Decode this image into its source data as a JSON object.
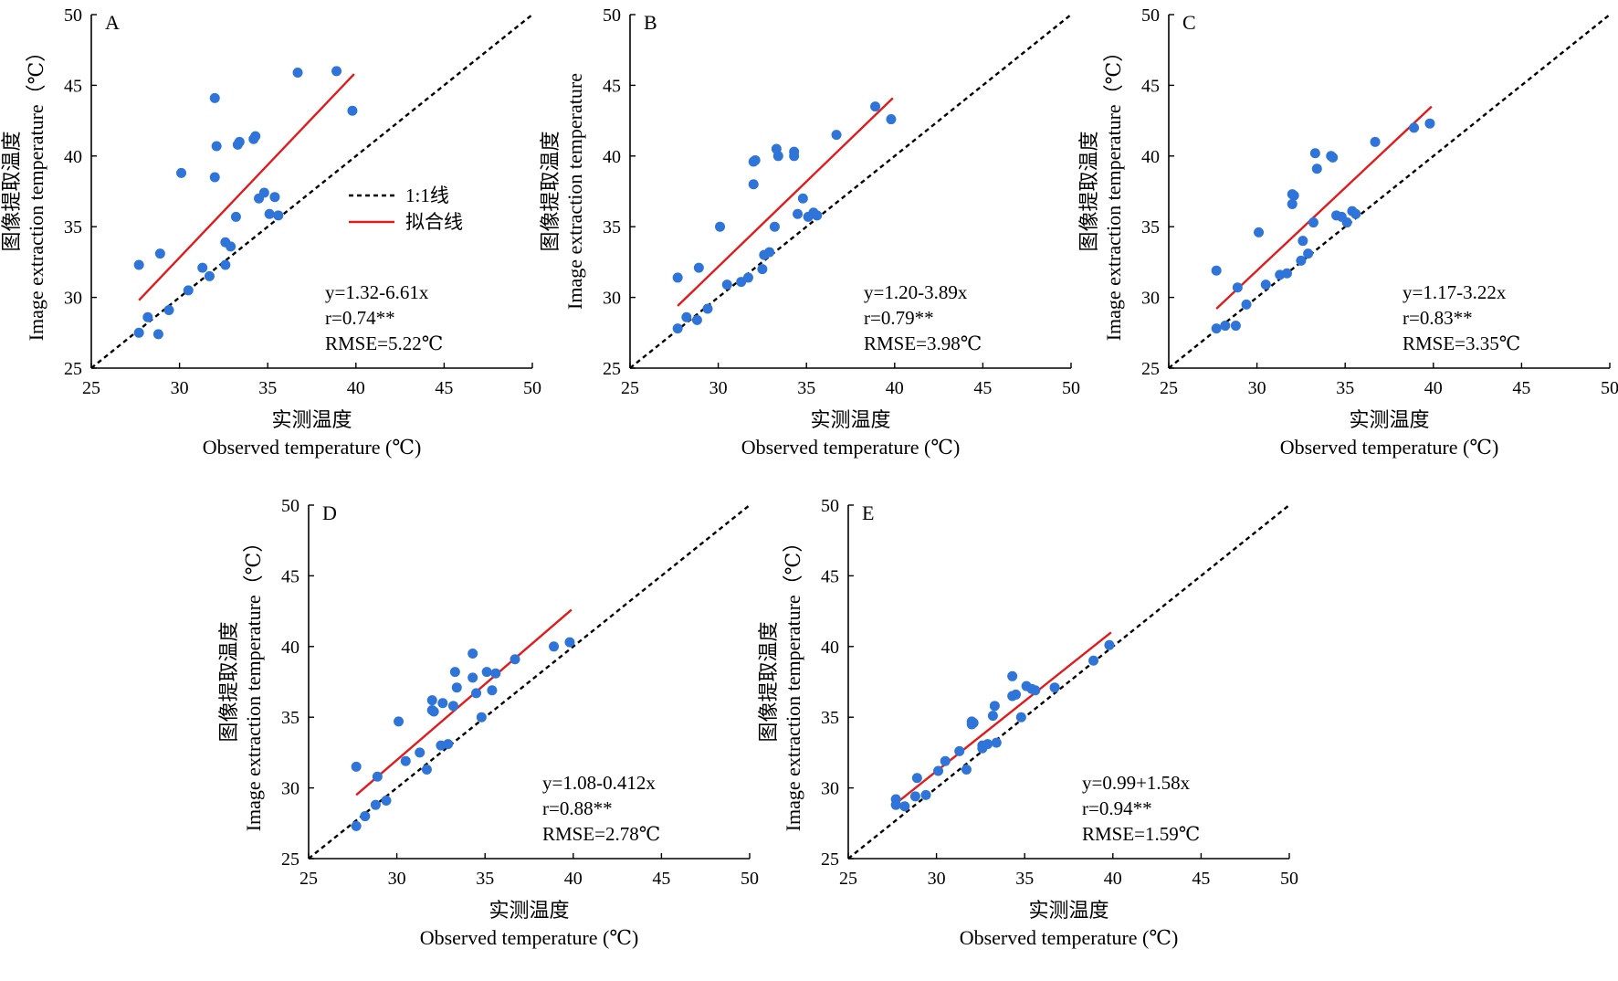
{
  "figure": {
    "legend": {
      "identity_label": "1:1线",
      "fit_label": "拟合线"
    }
  },
  "colors": {
    "points": "#2f74d8",
    "fit_line": "#e31a1c",
    "identity_line": "#000000"
  },
  "chart_data": [
    {
      "panel": "A",
      "type": "scatter",
      "xlabel_cn": "实测温度",
      "xlabel_en": "Observed temperature (℃)",
      "ylabel_cn": "图像提取温度",
      "ylabel_en": "Image extraction temperature（℃）",
      "xlim": [
        25,
        50
      ],
      "ylim": [
        25,
        50
      ],
      "xticks": [
        25,
        30,
        35,
        40,
        45,
        50
      ],
      "yticks": [
        25,
        30,
        35,
        40,
        45,
        50
      ],
      "equation": "y=1.32-6.61x",
      "r": "r=0.74**",
      "rmse": "RMSE=5.22℃",
      "fit_line": {
        "x": [
          27.7,
          39.9
        ],
        "y": [
          29.8,
          45.8
        ]
      },
      "points": [
        [
          27.7,
          32.3
        ],
        [
          27.7,
          27.5
        ],
        [
          28.2,
          28.6
        ],
        [
          28.8,
          27.4
        ],
        [
          28.9,
          33.1
        ],
        [
          29.4,
          29.1
        ],
        [
          30.1,
          38.8
        ],
        [
          30.5,
          30.5
        ],
        [
          31.3,
          32.1
        ],
        [
          31.7,
          31.5
        ],
        [
          32.0,
          44.1
        ],
        [
          32.0,
          38.5
        ],
        [
          32.1,
          40.7
        ],
        [
          32.6,
          32.3
        ],
        [
          32.6,
          33.9
        ],
        [
          32.9,
          33.6
        ],
        [
          33.2,
          35.7
        ],
        [
          33.3,
          40.8
        ],
        [
          33.4,
          41.0
        ],
        [
          34.2,
          41.2
        ],
        [
          34.3,
          41.4
        ],
        [
          34.5,
          37.0
        ],
        [
          34.8,
          37.4
        ],
        [
          35.1,
          35.9
        ],
        [
          35.4,
          37.1
        ],
        [
          35.6,
          35.8
        ],
        [
          36.7,
          45.9
        ],
        [
          38.9,
          46.0
        ],
        [
          39.8,
          43.2
        ]
      ]
    },
    {
      "panel": "B",
      "type": "scatter",
      "xlabel_cn": "实测温度",
      "xlabel_en": "Observed temperature (℃)",
      "ylabel_cn": "图像提取温度",
      "ylabel_en": "Image extraction temperature",
      "xlim": [
        25,
        50
      ],
      "ylim": [
        25,
        50
      ],
      "xticks": [
        25,
        30,
        35,
        40,
        45,
        50
      ],
      "yticks": [
        25,
        30,
        35,
        40,
        45,
        50
      ],
      "equation": "y=1.20-3.89x",
      "r": "r=0.79**",
      "rmse": "RMSE=3.98℃",
      "fit_line": {
        "x": [
          27.7,
          39.9
        ],
        "y": [
          29.4,
          44.1
        ]
      },
      "points": [
        [
          27.7,
          31.4
        ],
        [
          27.7,
          27.8
        ],
        [
          28.2,
          28.6
        ],
        [
          28.8,
          28.4
        ],
        [
          28.9,
          32.1
        ],
        [
          29.4,
          29.2
        ],
        [
          30.1,
          35.0
        ],
        [
          30.5,
          30.9
        ],
        [
          31.3,
          31.1
        ],
        [
          31.7,
          31.4
        ],
        [
          32.0,
          39.6
        ],
        [
          32.0,
          38.0
        ],
        [
          32.1,
          39.7
        ],
        [
          32.5,
          32.0
        ],
        [
          32.6,
          33.0
        ],
        [
          32.9,
          33.2
        ],
        [
          33.2,
          35.0
        ],
        [
          33.3,
          40.5
        ],
        [
          33.4,
          40.0
        ],
        [
          34.3,
          40.3
        ],
        [
          34.3,
          40.0
        ],
        [
          34.5,
          35.9
        ],
        [
          34.8,
          37.0
        ],
        [
          35.1,
          35.7
        ],
        [
          35.4,
          36.0
        ],
        [
          35.6,
          35.8
        ],
        [
          36.7,
          41.5
        ],
        [
          38.9,
          43.5
        ],
        [
          39.8,
          42.6
        ]
      ]
    },
    {
      "panel": "C",
      "type": "scatter",
      "xlabel_cn": "实测温度",
      "xlabel_en": "Observed temperature (℃)",
      "ylabel_cn": "图像提取温度",
      "ylabel_en": "Image extraction temperature（℃）",
      "xlim": [
        25,
        50
      ],
      "ylim": [
        25,
        50
      ],
      "xticks": [
        25,
        30,
        35,
        40,
        45,
        50
      ],
      "yticks": [
        25,
        30,
        35,
        40,
        45,
        50
      ],
      "equation": "y=1.17-3.22x",
      "r": "r=0.83**",
      "rmse": "RMSE=3.35℃",
      "fit_line": {
        "x": [
          27.7,
          39.9
        ],
        "y": [
          29.2,
          43.5
        ]
      },
      "points": [
        [
          27.7,
          31.9
        ],
        [
          27.7,
          27.8
        ],
        [
          28.2,
          28.0
        ],
        [
          28.8,
          28.0
        ],
        [
          28.9,
          30.7
        ],
        [
          29.4,
          29.5
        ],
        [
          30.1,
          34.6
        ],
        [
          30.5,
          30.9
        ],
        [
          31.3,
          31.6
        ],
        [
          31.7,
          31.7
        ],
        [
          32.0,
          37.3
        ],
        [
          32.0,
          36.6
        ],
        [
          32.1,
          37.2
        ],
        [
          32.5,
          32.6
        ],
        [
          32.6,
          34.0
        ],
        [
          32.9,
          33.1
        ],
        [
          33.2,
          35.3
        ],
        [
          33.3,
          40.2
        ],
        [
          33.4,
          39.1
        ],
        [
          34.2,
          40.0
        ],
        [
          34.3,
          39.9
        ],
        [
          34.5,
          35.8
        ],
        [
          34.8,
          35.7
        ],
        [
          35.1,
          35.3
        ],
        [
          35.4,
          36.1
        ],
        [
          35.6,
          35.9
        ],
        [
          36.7,
          41.0
        ],
        [
          38.9,
          42.0
        ],
        [
          39.8,
          42.3
        ]
      ]
    },
    {
      "panel": "D",
      "type": "scatter",
      "xlabel_cn": "实测温度",
      "xlabel_en": "Observed temperature (℃)",
      "ylabel_cn": "图像提取温度",
      "ylabel_en": "Image extraction temperature（℃）",
      "xlim": [
        25,
        50
      ],
      "ylim": [
        25,
        50
      ],
      "xticks": [
        25,
        30,
        35,
        40,
        45,
        50
      ],
      "yticks": [
        25,
        30,
        35,
        40,
        45,
        50
      ],
      "equation": "y=1.08-0.412x",
      "r": "r=0.88**",
      "rmse": "RMSE=2.78℃",
      "fit_line": {
        "x": [
          27.7,
          39.9
        ],
        "y": [
          29.5,
          42.6
        ]
      },
      "points": [
        [
          27.7,
          31.5
        ],
        [
          27.7,
          27.3
        ],
        [
          28.2,
          28.0
        ],
        [
          28.8,
          28.8
        ],
        [
          28.9,
          30.8
        ],
        [
          29.4,
          29.1
        ],
        [
          30.1,
          34.7
        ],
        [
          30.5,
          31.9
        ],
        [
          31.3,
          32.5
        ],
        [
          31.7,
          31.3
        ],
        [
          32.0,
          36.2
        ],
        [
          32.0,
          35.5
        ],
        [
          32.1,
          35.4
        ],
        [
          32.5,
          33.0
        ],
        [
          32.6,
          36.0
        ],
        [
          32.9,
          33.1
        ],
        [
          33.2,
          35.8
        ],
        [
          33.3,
          38.2
        ],
        [
          33.4,
          37.1
        ],
        [
          34.3,
          39.5
        ],
        [
          34.3,
          37.8
        ],
        [
          34.5,
          36.7
        ],
        [
          34.8,
          35.0
        ],
        [
          35.1,
          38.2
        ],
        [
          35.4,
          36.9
        ],
        [
          35.6,
          38.1
        ],
        [
          36.7,
          39.1
        ],
        [
          38.9,
          40.0
        ],
        [
          39.8,
          40.3
        ]
      ]
    },
    {
      "panel": "E",
      "type": "scatter",
      "xlabel_cn": "实测温度",
      "xlabel_en": "Observed temperature (℃)",
      "ylabel_cn": "图像提取温度",
      "ylabel_en": "Image extraction temperature（℃）",
      "xlim": [
        25,
        50
      ],
      "ylim": [
        25,
        50
      ],
      "xticks": [
        25,
        30,
        35,
        40,
        45,
        50
      ],
      "yticks": [
        25,
        30,
        35,
        40,
        45,
        50
      ],
      "equation": "y=0.99+1.58x",
      "r": "r=0.94**",
      "rmse": "RMSE=1.59℃",
      "fit_line": {
        "x": [
          27.7,
          39.9
        ],
        "y": [
          28.9,
          41.0
        ]
      },
      "points": [
        [
          27.7,
          29.2
        ],
        [
          27.7,
          28.8
        ],
        [
          28.2,
          28.7
        ],
        [
          28.8,
          29.4
        ],
        [
          28.9,
          30.7
        ],
        [
          29.4,
          29.5
        ],
        [
          30.1,
          31.2
        ],
        [
          30.5,
          31.9
        ],
        [
          31.3,
          32.6
        ],
        [
          31.7,
          31.3
        ],
        [
          32.0,
          34.7
        ],
        [
          32.0,
          34.5
        ],
        [
          32.1,
          34.6
        ],
        [
          32.6,
          32.8
        ],
        [
          32.6,
          33.0
        ],
        [
          32.9,
          33.1
        ],
        [
          33.2,
          35.1
        ],
        [
          33.3,
          35.8
        ],
        [
          33.4,
          33.2
        ],
        [
          34.3,
          37.9
        ],
        [
          34.3,
          36.5
        ],
        [
          34.5,
          36.6
        ],
        [
          34.8,
          35.0
        ],
        [
          35.1,
          37.2
        ],
        [
          35.4,
          37.0
        ],
        [
          35.6,
          36.9
        ],
        [
          36.7,
          37.1
        ],
        [
          38.9,
          39.0
        ],
        [
          39.8,
          40.1
        ]
      ]
    }
  ]
}
